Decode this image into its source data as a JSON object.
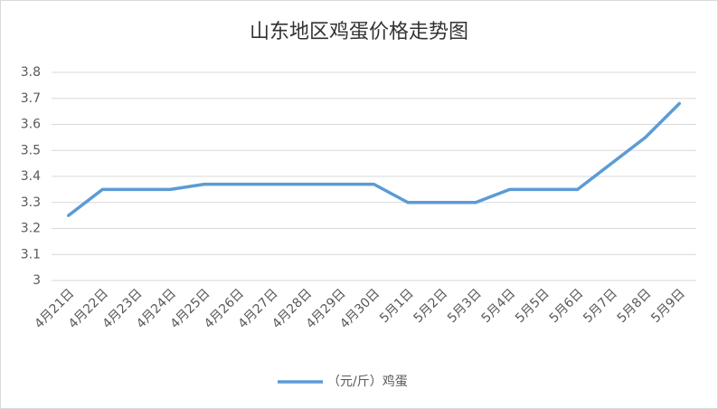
{
  "chart_data": {
    "type": "line",
    "title": "山东地区鸡蛋价格走势图",
    "categories": [
      "4月21日",
      "4月22日",
      "4月23日",
      "4月24日",
      "4月25日",
      "4月26日",
      "4月27日",
      "4月28日",
      "4月29日",
      "4月30日",
      "5月1日",
      "5月2日",
      "5月3日",
      "5月4日",
      "5月5日",
      "5月6日",
      "5月7日",
      "5月8日",
      "5月9日"
    ],
    "series": [
      {
        "name": "（元/斤）鸡蛋",
        "color": "#5b9bd5",
        "values": [
          3.25,
          3.35,
          3.35,
          3.35,
          3.37,
          3.37,
          3.37,
          3.37,
          3.37,
          3.37,
          3.3,
          3.3,
          3.3,
          3.35,
          3.35,
          3.35,
          3.45,
          3.55,
          3.68
        ]
      }
    ],
    "ylim": [
      3,
      3.8
    ],
    "yticks": [
      3,
      3.1,
      3.2,
      3.3,
      3.4,
      3.5,
      3.6,
      3.7,
      3.8
    ],
    "grid": true,
    "legend": "bottom"
  }
}
